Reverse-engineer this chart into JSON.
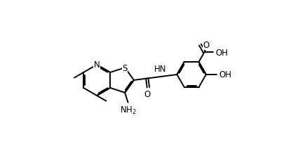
{
  "bg_color": "#ffffff",
  "line_color": "#000000",
  "line_width": 1.4,
  "font_size": 8.5,
  "figsize": [
    4.08,
    2.3
  ],
  "dpi": 100,
  "xlim": [
    0,
    10
  ],
  "ylim": [
    0,
    5.8
  ]
}
